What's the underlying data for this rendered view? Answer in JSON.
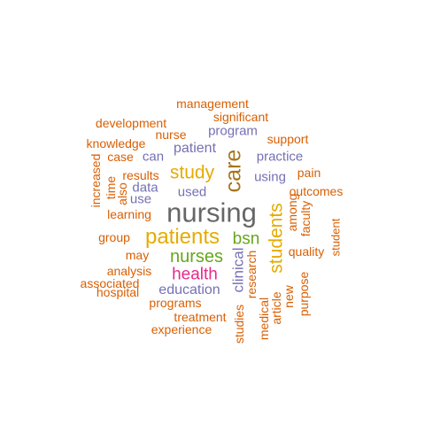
{
  "colors": {
    "c_orange": "#d95f02",
    "c_purple": "#7570b3",
    "c_gold": "#e6ab02",
    "c_brown": "#a6761d",
    "c_grey": "#666666",
    "c_green": "#66a61e",
    "c_magenta": "#e7298a"
  },
  "words": [
    {
      "text": "nursing",
      "color": "c_grey",
      "rotated": false
    },
    {
      "text": "care",
      "color": "c_brown",
      "rotated": true
    },
    {
      "text": "patients",
      "color": "c_gold",
      "rotated": false
    },
    {
      "text": "students",
      "color": "c_gold",
      "rotated": true
    },
    {
      "text": "study",
      "color": "c_gold",
      "rotated": false
    },
    {
      "text": "nurses",
      "color": "c_green",
      "rotated": false
    },
    {
      "text": "health",
      "color": "c_magenta",
      "rotated": false
    },
    {
      "text": "bsn",
      "color": "c_green",
      "rotated": false
    },
    {
      "text": "clinical",
      "color": "c_purple",
      "rotated": true
    },
    {
      "text": "education",
      "color": "c_purple",
      "rotated": false
    },
    {
      "text": "patient",
      "color": "c_purple",
      "rotated": false
    },
    {
      "text": "program",
      "color": "c_purple",
      "rotated": false
    },
    {
      "text": "practice",
      "color": "c_purple",
      "rotated": false
    },
    {
      "text": "using",
      "color": "c_purple",
      "rotated": false
    },
    {
      "text": "used",
      "color": "c_purple",
      "rotated": false
    },
    {
      "text": "can",
      "color": "c_purple",
      "rotated": false
    },
    {
      "text": "data",
      "color": "c_purple",
      "rotated": false
    },
    {
      "text": "use",
      "color": "c_purple",
      "rotated": false
    },
    {
      "text": "management",
      "color": "c_orange",
      "rotated": false
    },
    {
      "text": "significant",
      "color": "c_orange",
      "rotated": false
    },
    {
      "text": "development",
      "color": "c_orange",
      "rotated": false
    },
    {
      "text": "nurse",
      "color": "c_orange",
      "rotated": false
    },
    {
      "text": "support",
      "color": "c_orange",
      "rotated": false
    },
    {
      "text": "knowledge",
      "color": "c_orange",
      "rotated": false
    },
    {
      "text": "case",
      "color": "c_orange",
      "rotated": false
    },
    {
      "text": "pain",
      "color": "c_orange",
      "rotated": false
    },
    {
      "text": "results",
      "color": "c_orange",
      "rotated": false
    },
    {
      "text": "outcomes",
      "color": "c_orange",
      "rotated": false
    },
    {
      "text": "increased",
      "color": "c_orange",
      "rotated": true
    },
    {
      "text": "time",
      "color": "c_orange",
      "rotated": true
    },
    {
      "text": "also",
      "color": "c_orange",
      "rotated": true
    },
    {
      "text": "among",
      "color": "c_orange",
      "rotated": true
    },
    {
      "text": "faculty",
      "color": "c_orange",
      "rotated": true
    },
    {
      "text": "learning",
      "color": "c_orange",
      "rotated": false
    },
    {
      "text": "student",
      "color": "c_orange",
      "rotated": true
    },
    {
      "text": "group",
      "color": "c_orange",
      "rotated": false
    },
    {
      "text": "quality",
      "color": "c_orange",
      "rotated": false
    },
    {
      "text": "may",
      "color": "c_orange",
      "rotated": false
    },
    {
      "text": "research",
      "color": "c_orange",
      "rotated": true
    },
    {
      "text": "analysis",
      "color": "c_orange",
      "rotated": false
    },
    {
      "text": "associated",
      "color": "c_orange",
      "rotated": false
    },
    {
      "text": "purpose",
      "color": "c_orange",
      "rotated": true
    },
    {
      "text": "hospital",
      "color": "c_orange",
      "rotated": false
    },
    {
      "text": "new",
      "color": "c_orange",
      "rotated": true
    },
    {
      "text": "article",
      "color": "c_orange",
      "rotated": true
    },
    {
      "text": "programs",
      "color": "c_orange",
      "rotated": false
    },
    {
      "text": "medical",
      "color": "c_orange",
      "rotated": true
    },
    {
      "text": "studies",
      "color": "c_orange",
      "rotated": true
    },
    {
      "text": "treatment",
      "color": "c_orange",
      "rotated": false
    },
    {
      "text": "experience",
      "color": "c_orange",
      "rotated": false
    }
  ]
}
